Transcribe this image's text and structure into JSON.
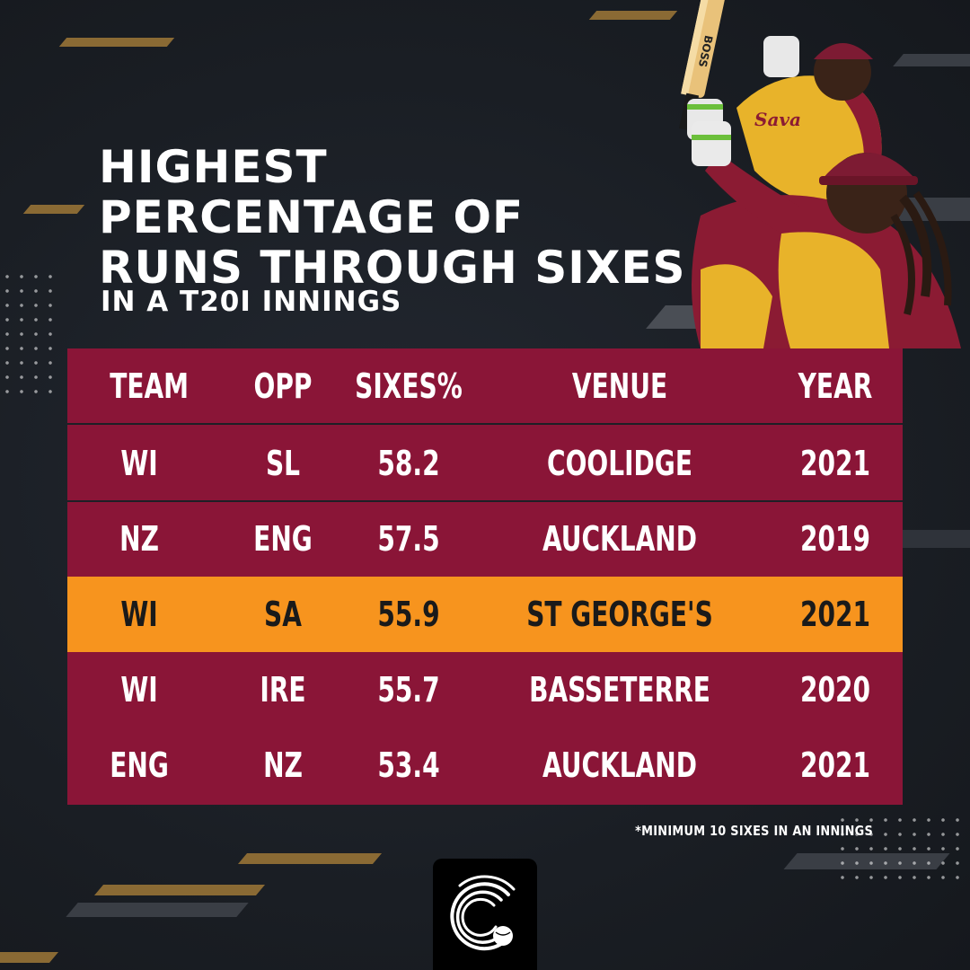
{
  "title": {
    "line1": "HIGHEST",
    "line2": "PERCENTAGE OF",
    "line3": "RUNS THROUGH SIXES",
    "subtitle": "IN A T20I INNINGS"
  },
  "table": {
    "columns": [
      "TEAM",
      "OPP",
      "SIXES%",
      "VENUE",
      "YEAR"
    ],
    "rows": [
      {
        "team": "WI",
        "opp": "SL",
        "sixes_pct": "58.2",
        "venue": "COOLIDGE",
        "year": "2021"
      },
      {
        "team": "NZ",
        "opp": "ENG",
        "sixes_pct": "57.5",
        "venue": "AUCKLAND",
        "year": "2019"
      },
      {
        "team": "WI",
        "opp": "SA",
        "sixes_pct": "55.9",
        "venue": "ST GEORGE'S",
        "year": "2021"
      },
      {
        "team": "WI",
        "opp": "IRE",
        "sixes_pct": "55.7",
        "venue": "BASSETERRE",
        "year": "2020"
      },
      {
        "team": "ENG",
        "opp": "NZ",
        "sixes_pct": "53.4",
        "venue": "AUCKLAND",
        "year": "2021"
      }
    ],
    "highlight_row": 2
  },
  "footnote": "*MINIMUM 10 SIXES IN AN INNINGS",
  "player_art": {
    "bat_text": "BOSS",
    "shirt_text": "Sava"
  },
  "colors": {
    "table_bg": "#8a1537",
    "highlight": "#f7941e",
    "background": "#1b1f25",
    "accent_stripe": "#8a6a34"
  },
  "icons": {
    "logo": "cricket-ball-swirl-logo"
  }
}
